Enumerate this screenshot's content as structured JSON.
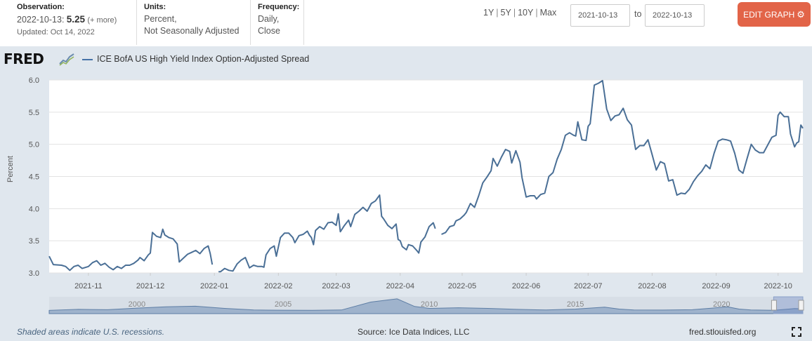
{
  "meta": {
    "observation_label": "Observation:",
    "observation_date": "2022-10-13:",
    "observation_value": "5.25",
    "observation_more": "(+ more)",
    "updated": "Updated: Oct 14, 2022",
    "units_label": "Units:",
    "units_line1": "Percent,",
    "units_line2": "Not Seasonally Adjusted",
    "frequency_label": "Frequency:",
    "frequency_line1": "Daily,",
    "frequency_line2": "Close"
  },
  "controls": {
    "ranges": [
      "1Y",
      "5Y",
      "10Y",
      "Max"
    ],
    "range_sep": "|",
    "start_date": "2021-10-13",
    "end_date": "2022-10-13",
    "to_label": "to",
    "edit_button": "EDIT GRAPH",
    "gear_icon": "gear-icon"
  },
  "header": {
    "logo_text": "FRED",
    "logo_icon": "chart-trend-icon",
    "legend_label": "ICE BofA US High Yield Index Option-Adjusted Spread"
  },
  "footer": {
    "recession_note": "Shaded areas indicate U.S. recessions.",
    "source": "Source: Ice Data Indices, LLC",
    "site": "fred.stlouisfed.org",
    "expand_icon": "fullscreen-icon"
  },
  "chart_data": {
    "type": "line",
    "title": "",
    "xlabel": "",
    "ylabel": "Percent",
    "ylim": [
      3.0,
      6.0
    ],
    "yticks": [
      "3.0",
      "3.5",
      "4.0",
      "4.5",
      "5.0",
      "5.5",
      "6.0"
    ],
    "xlim": [
      "2021-10-13",
      "2022-10-13"
    ],
    "xticks": [
      {
        "label": "2021-11",
        "date": "2021-11-01"
      },
      {
        "label": "2021-12",
        "date": "2021-12-01"
      },
      {
        "label": "2022-01",
        "date": "2022-01-01"
      },
      {
        "label": "2022-02",
        "date": "2022-02-01"
      },
      {
        "label": "2022-03",
        "date": "2022-03-01"
      },
      {
        "label": "2022-04",
        "date": "2022-04-01"
      },
      {
        "label": "2022-05",
        "date": "2022-05-01"
      },
      {
        "label": "2022-06",
        "date": "2022-06-01"
      },
      {
        "label": "2022-07",
        "date": "2022-07-01"
      },
      {
        "label": "2022-08",
        "date": "2022-08-01"
      },
      {
        "label": "2022-09",
        "date": "2022-09-01"
      },
      {
        "label": "2022-10",
        "date": "2022-10-01"
      }
    ],
    "grid": true,
    "color": "#4a6f96",
    "series": [
      {
        "name": "ICE BofA US High Yield Index Option-Adjusted Spread",
        "segments": [
          [
            [
              "2021-10-13",
              3.26
            ],
            [
              "2021-10-15",
              3.13
            ],
            [
              "2021-10-19",
              3.12
            ],
            [
              "2021-10-21",
              3.1
            ],
            [
              "2021-10-23",
              3.04
            ],
            [
              "2021-10-25",
              3.1
            ],
            [
              "2021-10-27",
              3.12
            ],
            [
              "2021-10-29",
              3.07
            ],
            [
              "2021-11-01",
              3.1
            ],
            [
              "2021-11-03",
              3.16
            ],
            [
              "2021-11-05",
              3.19
            ],
            [
              "2021-11-07",
              3.12
            ],
            [
              "2021-11-09",
              3.15
            ],
            [
              "2021-11-11",
              3.09
            ],
            [
              "2021-11-13",
              3.05
            ],
            [
              "2021-11-15",
              3.1
            ],
            [
              "2021-11-17",
              3.07
            ],
            [
              "2021-11-19",
              3.12
            ],
            [
              "2021-11-21",
              3.12
            ],
            [
              "2021-11-23",
              3.15
            ],
            [
              "2021-11-25",
              3.2
            ],
            [
              "2021-11-26",
              3.24
            ],
            [
              "2021-11-28",
              3.19
            ],
            [
              "2021-11-30",
              3.28
            ],
            [
              "2021-12-01",
              3.31
            ],
            [
              "2021-12-02",
              3.63
            ],
            [
              "2021-12-04",
              3.57
            ],
            [
              "2021-12-06",
              3.55
            ],
            [
              "2021-12-07",
              3.68
            ],
            [
              "2021-12-08",
              3.59
            ],
            [
              "2021-12-10",
              3.55
            ],
            [
              "2021-12-12",
              3.53
            ],
            [
              "2021-12-14",
              3.45
            ],
            [
              "2021-12-15",
              3.17
            ],
            [
              "2021-12-17",
              3.23
            ],
            [
              "2021-12-19",
              3.29
            ],
            [
              "2021-12-21",
              3.32
            ],
            [
              "2021-12-23",
              3.35
            ],
            [
              "2021-12-25",
              3.3
            ],
            [
              "2021-12-27",
              3.38
            ],
            [
              "2021-12-29",
              3.42
            ],
            [
              "2021-12-30",
              3.3
            ],
            [
              "2021-12-31",
              3.13
            ]
          ],
          [
            [
              "2022-01-03",
              3.02
            ],
            [
              "2022-01-04",
              3.02
            ],
            [
              "2022-01-06",
              3.07
            ],
            [
              "2022-01-08",
              3.04
            ],
            [
              "2022-01-10",
              3.03
            ],
            [
              "2022-01-12",
              3.14
            ],
            [
              "2022-01-14",
              3.2
            ],
            [
              "2022-01-16",
              3.24
            ],
            [
              "2022-01-18",
              3.08
            ],
            [
              "2022-01-20",
              3.12
            ],
            [
              "2022-01-22",
              3.1
            ],
            [
              "2022-01-24",
              3.1
            ],
            [
              "2022-01-25",
              3.09
            ],
            [
              "2022-01-26",
              3.28
            ],
            [
              "2022-01-28",
              3.38
            ],
            [
              "2022-01-30",
              3.42
            ],
            [
              "2022-01-31",
              3.26
            ],
            [
              "2022-02-02",
              3.55
            ],
            [
              "2022-02-04",
              3.62
            ],
            [
              "2022-02-06",
              3.62
            ],
            [
              "2022-02-08",
              3.55
            ],
            [
              "2022-02-09",
              3.47
            ],
            [
              "2022-02-11",
              3.58
            ],
            [
              "2022-02-13",
              3.6
            ],
            [
              "2022-02-15",
              3.65
            ],
            [
              "2022-02-16",
              3.59
            ],
            [
              "2022-02-17",
              3.55
            ],
            [
              "2022-02-18",
              3.44
            ],
            [
              "2022-02-19",
              3.66
            ],
            [
              "2022-02-21",
              3.72
            ],
            [
              "2022-02-23",
              3.68
            ],
            [
              "2022-02-25",
              3.78
            ],
            [
              "2022-02-27",
              3.79
            ],
            [
              "2022-03-01",
              3.74
            ],
            [
              "2022-03-02",
              3.92
            ],
            [
              "2022-03-03",
              3.64
            ],
            [
              "2022-03-05",
              3.74
            ],
            [
              "2022-03-07",
              3.82
            ],
            [
              "2022-03-08",
              3.72
            ],
            [
              "2022-03-10",
              3.91
            ],
            [
              "2022-03-12",
              3.96
            ],
            [
              "2022-03-14",
              4.02
            ],
            [
              "2022-03-16",
              3.96
            ],
            [
              "2022-03-18",
              4.08
            ],
            [
              "2022-03-20",
              4.12
            ],
            [
              "2022-03-22",
              4.21
            ],
            [
              "2022-03-23",
              3.88
            ],
            [
              "2022-03-24",
              3.84
            ],
            [
              "2022-03-26",
              3.74
            ],
            [
              "2022-03-28",
              3.69
            ],
            [
              "2022-03-30",
              3.76
            ],
            [
              "2022-03-31",
              3.52
            ],
            [
              "2022-04-01",
              3.5
            ],
            [
              "2022-04-02",
              3.41
            ],
            [
              "2022-04-04",
              3.36
            ],
            [
              "2022-04-05",
              3.44
            ],
            [
              "2022-04-07",
              3.42
            ],
            [
              "2022-04-09",
              3.35
            ],
            [
              "2022-04-10",
              3.31
            ],
            [
              "2022-04-11",
              3.48
            ],
            [
              "2022-04-13",
              3.56
            ],
            [
              "2022-04-15",
              3.72
            ],
            [
              "2022-04-17",
              3.78
            ],
            [
              "2022-04-18",
              3.69
            ]
          ],
          [
            [
              "2022-04-21",
              3.6
            ],
            [
              "2022-04-23",
              3.63
            ],
            [
              "2022-04-25",
              3.72
            ],
            [
              "2022-04-27",
              3.74
            ],
            [
              "2022-04-28",
              3.81
            ],
            [
              "2022-04-30",
              3.84
            ],
            [
              "2022-05-02",
              3.9
            ],
            [
              "2022-05-03",
              3.94
            ],
            [
              "2022-05-05",
              4.08
            ],
            [
              "2022-05-07",
              4.02
            ],
            [
              "2022-05-09",
              4.2
            ],
            [
              "2022-05-11",
              4.4
            ],
            [
              "2022-05-13",
              4.49
            ],
            [
              "2022-05-15",
              4.59
            ],
            [
              "2022-05-16",
              4.78
            ],
            [
              "2022-05-18",
              4.66
            ],
            [
              "2022-05-20",
              4.8
            ],
            [
              "2022-05-22",
              4.92
            ],
            [
              "2022-05-24",
              4.89
            ],
            [
              "2022-05-25",
              4.71
            ],
            [
              "2022-05-27",
              4.9
            ],
            [
              "2022-05-29",
              4.72
            ],
            [
              "2022-05-30",
              4.48
            ],
            [
              "2022-06-01",
              4.18
            ],
            [
              "2022-06-03",
              4.2
            ],
            [
              "2022-06-05",
              4.2
            ],
            [
              "2022-06-06",
              4.15
            ],
            [
              "2022-06-08",
              4.22
            ],
            [
              "2022-06-10",
              4.24
            ],
            [
              "2022-06-12",
              4.5
            ],
            [
              "2022-06-14",
              4.56
            ],
            [
              "2022-06-16",
              4.77
            ],
            [
              "2022-06-18",
              4.92
            ],
            [
              "2022-06-20",
              5.14
            ],
            [
              "2022-06-22",
              5.18
            ],
            [
              "2022-06-24",
              5.14
            ],
            [
              "2022-06-25",
              5.13
            ],
            [
              "2022-06-26",
              5.35
            ],
            [
              "2022-06-28",
              5.07
            ],
            [
              "2022-06-30",
              5.06
            ],
            [
              "2022-07-01",
              5.28
            ],
            [
              "2022-07-02",
              5.32
            ],
            [
              "2022-07-04",
              5.92
            ],
            [
              "2022-07-06",
              5.95
            ],
            [
              "2022-07-08",
              5.99
            ],
            [
              "2022-07-10",
              5.55
            ],
            [
              "2022-07-12",
              5.37
            ],
            [
              "2022-07-14",
              5.44
            ],
            [
              "2022-07-16",
              5.46
            ],
            [
              "2022-07-18",
              5.56
            ],
            [
              "2022-07-20",
              5.38
            ],
            [
              "2022-07-22",
              5.3
            ],
            [
              "2022-07-24",
              4.92
            ],
            [
              "2022-07-26",
              4.98
            ],
            [
              "2022-07-28",
              4.98
            ],
            [
              "2022-07-30",
              5.07
            ],
            [
              "2022-08-01",
              4.84
            ],
            [
              "2022-08-03",
              4.6
            ],
            [
              "2022-08-05",
              4.73
            ],
            [
              "2022-08-07",
              4.7
            ],
            [
              "2022-08-09",
              4.43
            ],
            [
              "2022-08-11",
              4.45
            ],
            [
              "2022-08-13",
              4.21
            ],
            [
              "2022-08-15",
              4.24
            ],
            [
              "2022-08-17",
              4.23
            ],
            [
              "2022-08-19",
              4.3
            ],
            [
              "2022-08-21",
              4.42
            ],
            [
              "2022-08-23",
              4.51
            ],
            [
              "2022-08-25",
              4.58
            ],
            [
              "2022-08-27",
              4.68
            ],
            [
              "2022-08-29",
              4.62
            ],
            [
              "2022-08-31",
              4.86
            ],
            [
              "2022-09-02",
              5.05
            ],
            [
              "2022-09-04",
              5.08
            ],
            [
              "2022-09-06",
              5.07
            ],
            [
              "2022-09-08",
              5.05
            ],
            [
              "2022-09-10",
              4.86
            ],
            [
              "2022-09-12",
              4.6
            ],
            [
              "2022-09-14",
              4.55
            ],
            [
              "2022-09-16",
              4.78
            ],
            [
              "2022-09-18",
              5.0
            ],
            [
              "2022-09-20",
              4.91
            ],
            [
              "2022-09-22",
              4.87
            ],
            [
              "2022-09-24",
              4.87
            ],
            [
              "2022-09-26",
              4.99
            ],
            [
              "2022-09-28",
              5.11
            ],
            [
              "2022-09-30",
              5.14
            ],
            [
              "2022-10-01",
              5.45
            ],
            [
              "2022-10-02",
              5.5
            ],
            [
              "2022-10-04",
              5.43
            ],
            [
              "2022-10-06",
              5.43
            ],
            [
              "2022-10-07",
              5.16
            ],
            [
              "2022-10-09",
              4.96
            ],
            [
              "2022-10-10",
              5.02
            ],
            [
              "2022-10-11",
              5.04
            ],
            [
              "2022-10-12",
              5.3
            ],
            [
              "2022-10-13",
              5.25
            ]
          ]
        ]
      }
    ],
    "navigator": {
      "labels": [
        "2000",
        "2005",
        "2010",
        "2015",
        "2020"
      ],
      "dates": [
        "2000-01-01",
        "2005-01-01",
        "2010-01-01",
        "2015-01-01",
        "2020-01-01"
      ]
    }
  }
}
